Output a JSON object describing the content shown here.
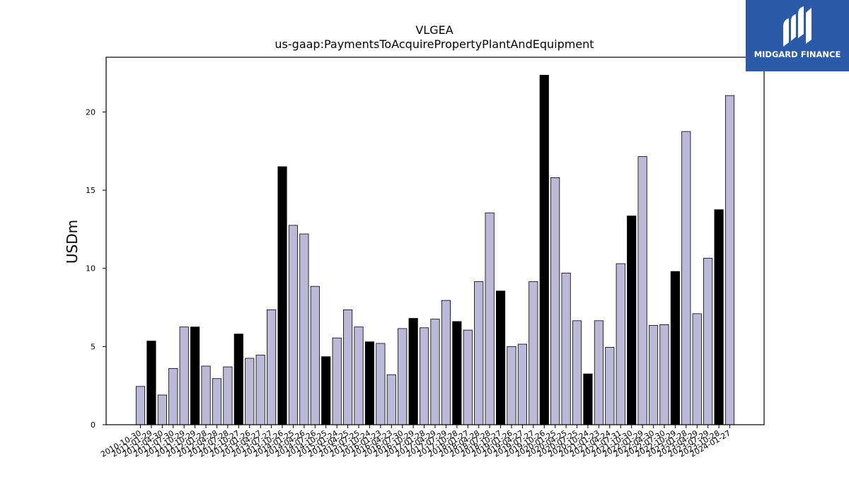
{
  "header": {
    "title": "VLGEA",
    "subtitle": "us-gaap:PaymentsToAcquirePropertyPlantAndEquipment"
  },
  "logo": {
    "text": "MIDGARD FINANCE",
    "color": "#2b5aa8"
  },
  "chart_data": {
    "type": "bar",
    "title": "VLGEA",
    "subtitle": "us-gaap:PaymentsToAcquirePropertyPlantAndEquipment",
    "xlabel": "",
    "ylabel": "USDm",
    "ylim": [
      0,
      23.5
    ],
    "yticks": [
      0,
      5,
      10,
      15,
      20
    ],
    "grid": false,
    "colors": {
      "quarter": "#bcb8d8",
      "annual": "#000000",
      "edge": "#000000"
    },
    "categories": [
      "2010-10-30",
      "2011-01-29",
      "2011-04-30",
      "2011-07-30",
      "2011-10-29",
      "2011-10-29",
      "2012-01-28",
      "2012-04-28",
      "2012-07-28",
      "2012-10-27",
      "2013-01-26",
      "2013-04-27",
      "2013-07-27",
      "2013-10-26",
      "2014-01-25",
      "2014-04-26",
      "2014-07-26",
      "2014-10-25",
      "2015-01-24",
      "2015-04-25",
      "2015-07-25",
      "2015-10-24",
      "2016-01-23",
      "2016-04-23",
      "2016-07-30",
      "2016-10-29",
      "2017-01-28",
      "2017-04-29",
      "2017-07-29",
      "2017-10-28",
      "2018-01-27",
      "2018-04-28",
      "2018-07-28",
      "2018-10-27",
      "2019-01-26",
      "2019-04-27",
      "2019-07-27",
      "2019-10-26",
      "2020-01-25",
      "2020-04-25",
      "2020-07-25",
      "2020-10-24",
      "2021-01-23",
      "2021-04-24",
      "2021-07-31",
      "2021-10-30",
      "2022-01-29",
      "2022-04-30",
      "2022-07-30",
      "2022-10-29",
      "2023-01-28",
      "2023-04-29",
      "2023-07-29",
      "2023-10-28",
      "2024-01-27"
    ],
    "values": [
      2.45,
      5.35,
      1.9,
      3.6,
      6.25,
      6.25,
      3.75,
      2.95,
      3.7,
      5.8,
      4.25,
      4.45,
      7.35,
      16.5,
      12.75,
      12.2,
      8.85,
      4.35,
      5.55,
      7.35,
      6.25,
      5.3,
      5.2,
      3.2,
      6.15,
      6.8,
      6.2,
      6.75,
      7.95,
      6.6,
      6.05,
      9.15,
      13.55,
      8.55,
      5.0,
      5.15,
      9.15,
      22.35,
      15.8,
      9.7,
      6.65,
      3.25,
      6.65,
      4.95,
      10.3,
      13.35,
      17.15,
      6.35,
      6.4,
      9.8,
      18.75,
      7.1,
      10.65,
      13.75,
      21.05
    ],
    "annual": [
      false,
      true,
      false,
      false,
      false,
      true,
      false,
      false,
      false,
      true,
      false,
      false,
      false,
      true,
      false,
      false,
      false,
      true,
      false,
      false,
      false,
      true,
      false,
      false,
      false,
      true,
      false,
      false,
      false,
      true,
      false,
      false,
      false,
      true,
      false,
      false,
      false,
      true,
      false,
      false,
      false,
      true,
      false,
      false,
      false,
      true,
      false,
      false,
      false,
      true,
      false,
      false,
      false,
      true,
      false
    ]
  }
}
